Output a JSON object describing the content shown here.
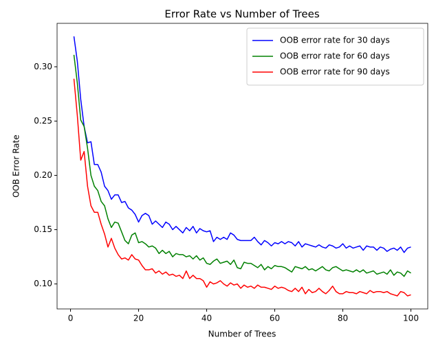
{
  "chart_data": {
    "type": "line",
    "title": "Error Rate vs Number of Trees",
    "xlabel": "Number of Trees",
    "ylabel": "OOB Error Rate",
    "x": [
      1,
      2,
      3,
      4,
      5,
      6,
      7,
      8,
      9,
      10,
      11,
      12,
      13,
      14,
      15,
      16,
      17,
      18,
      19,
      20,
      21,
      22,
      23,
      24,
      25,
      26,
      27,
      28,
      29,
      30,
      31,
      32,
      33,
      34,
      35,
      36,
      37,
      38,
      39,
      40,
      41,
      42,
      43,
      44,
      45,
      46,
      47,
      48,
      49,
      50,
      51,
      52,
      53,
      54,
      55,
      56,
      57,
      58,
      59,
      60,
      61,
      62,
      63,
      64,
      65,
      66,
      67,
      68,
      69,
      70,
      71,
      72,
      73,
      74,
      75,
      76,
      77,
      78,
      79,
      80,
      81,
      82,
      83,
      84,
      85,
      86,
      87,
      88,
      89,
      90,
      91,
      92,
      93,
      94,
      95,
      96,
      97,
      98,
      99,
      100
    ],
    "series": [
      {
        "name": "OOB error rate for 30 days",
        "color": "#0000ff",
        "values": [
          0.328,
          0.305,
          0.27,
          0.245,
          0.23,
          0.231,
          0.21,
          0.21,
          0.203,
          0.19,
          0.186,
          0.178,
          0.182,
          0.182,
          0.175,
          0.176,
          0.17,
          0.168,
          0.164,
          0.157,
          0.163,
          0.165,
          0.163,
          0.155,
          0.158,
          0.155,
          0.152,
          0.157,
          0.155,
          0.15,
          0.153,
          0.15,
          0.147,
          0.152,
          0.149,
          0.153,
          0.147,
          0.151,
          0.149,
          0.148,
          0.149,
          0.139,
          0.143,
          0.141,
          0.143,
          0.141,
          0.147,
          0.145,
          0.141,
          0.14,
          0.14,
          0.14,
          0.14,
          0.143,
          0.139,
          0.136,
          0.14,
          0.138,
          0.135,
          0.138,
          0.137,
          0.139,
          0.137,
          0.139,
          0.138,
          0.135,
          0.139,
          0.134,
          0.137,
          0.136,
          0.135,
          0.134,
          0.136,
          0.134,
          0.133,
          0.136,
          0.135,
          0.133,
          0.134,
          0.137,
          0.133,
          0.135,
          0.133,
          0.134,
          0.135,
          0.131,
          0.135,
          0.134,
          0.134,
          0.131,
          0.134,
          0.133,
          0.13,
          0.132,
          0.133,
          0.131,
          0.134,
          0.129,
          0.133,
          0.134
        ]
      },
      {
        "name": "OOB error rate for 60 days",
        "color": "#008000",
        "values": [
          0.311,
          0.285,
          0.251,
          0.245,
          0.225,
          0.2,
          0.19,
          0.186,
          0.176,
          0.172,
          0.16,
          0.152,
          0.157,
          0.156,
          0.148,
          0.14,
          0.137,
          0.145,
          0.147,
          0.138,
          0.139,
          0.137,
          0.134,
          0.135,
          0.133,
          0.128,
          0.131,
          0.128,
          0.13,
          0.125,
          0.128,
          0.127,
          0.127,
          0.125,
          0.126,
          0.123,
          0.126,
          0.122,
          0.124,
          0.119,
          0.118,
          0.121,
          0.123,
          0.119,
          0.12,
          0.121,
          0.118,
          0.122,
          0.115,
          0.114,
          0.12,
          0.119,
          0.119,
          0.117,
          0.115,
          0.118,
          0.113,
          0.116,
          0.114,
          0.117,
          0.116,
          0.116,
          0.115,
          0.113,
          0.111,
          0.116,
          0.115,
          0.114,
          0.116,
          0.113,
          0.114,
          0.112,
          0.114,
          0.116,
          0.113,
          0.112,
          0.115,
          0.116,
          0.114,
          0.112,
          0.113,
          0.112,
          0.111,
          0.113,
          0.111,
          0.113,
          0.11,
          0.111,
          0.112,
          0.109,
          0.11,
          0.111,
          0.109,
          0.113,
          0.108,
          0.111,
          0.11,
          0.107,
          0.112,
          0.11
        ]
      },
      {
        "name": "OOB error rate for 90 days",
        "color": "#ff0000",
        "values": [
          0.289,
          0.255,
          0.214,
          0.222,
          0.19,
          0.172,
          0.166,
          0.166,
          0.155,
          0.146,
          0.134,
          0.142,
          0.133,
          0.127,
          0.123,
          0.124,
          0.122,
          0.127,
          0.123,
          0.122,
          0.117,
          0.113,
          0.113,
          0.114,
          0.11,
          0.112,
          0.109,
          0.111,
          0.108,
          0.109,
          0.107,
          0.108,
          0.105,
          0.112,
          0.105,
          0.108,
          0.105,
          0.105,
          0.103,
          0.097,
          0.102,
          0.1,
          0.101,
          0.103,
          0.1,
          0.098,
          0.101,
          0.099,
          0.1,
          0.096,
          0.099,
          0.097,
          0.098,
          0.096,
          0.099,
          0.097,
          0.097,
          0.096,
          0.095,
          0.098,
          0.096,
          0.097,
          0.096,
          0.094,
          0.093,
          0.096,
          0.093,
          0.097,
          0.091,
          0.095,
          0.092,
          0.093,
          0.096,
          0.093,
          0.091,
          0.094,
          0.098,
          0.093,
          0.091,
          0.091,
          0.093,
          0.092,
          0.092,
          0.091,
          0.093,
          0.092,
          0.091,
          0.094,
          0.092,
          0.093,
          0.093,
          0.092,
          0.093,
          0.091,
          0.09,
          0.089,
          0.093,
          0.092,
          0.089,
          0.09
        ]
      }
    ],
    "xlim": [
      -3.95,
      104.95
    ],
    "xticks": [
      0,
      20,
      40,
      60,
      80,
      100
    ],
    "ylim": [
      0.077,
      0.34
    ],
    "yticks": [
      {
        "value": 0.1,
        "label": "0.10"
      },
      0.15,
      {
        "value": 0.2,
        "label": "0.20"
      },
      0.25,
      {
        "value": 0.3,
        "label": "0.30"
      }
    ],
    "legend": "upper right"
  }
}
